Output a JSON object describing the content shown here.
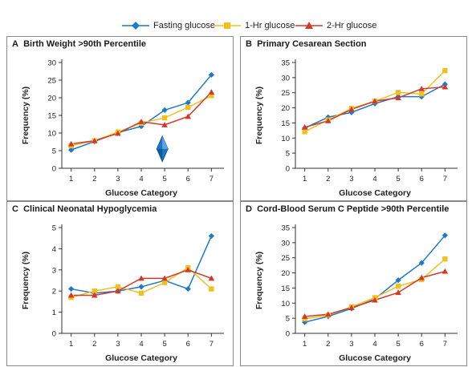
{
  "legend": {
    "fasting": "Fasting glucose",
    "one_hr": "1-Hr glucose",
    "two_hr": "2-Hr glucose"
  },
  "colors": {
    "fasting": "#1f78c8",
    "one_hr": "#f0c020",
    "two_hr": "#d03a2a",
    "border": "#8a8a8a"
  },
  "panels": [
    {
      "letter": "A",
      "title": "Birth Weight >90th Percentile"
    },
    {
      "letter": "B",
      "title": "Primary Cesarean Section"
    },
    {
      "letter": "C",
      "title": "Clinical Neonatal Hypoglycemia"
    },
    {
      "letter": "D",
      "title": "Cord-Blood Serum C Peptide >90th Percentile"
    }
  ],
  "chart_data": [
    {
      "type": "line",
      "title": "A Birth Weight >90th Percentile",
      "xlabel": "Glucose Category",
      "ylabel": "Frequency (%)",
      "x": [
        1,
        2,
        3,
        4,
        5,
        6,
        7
      ],
      "ylim": [
        0,
        30
      ],
      "yticks": [
        0,
        5,
        10,
        15,
        20,
        25,
        30
      ],
      "grid": false,
      "series": [
        {
          "name": "Fasting glucose",
          "marker": "diamond",
          "values": [
            5.2,
            7.6,
            10.1,
            11.9,
            16.5,
            18.6,
            26.5
          ]
        },
        {
          "name": "1-Hr glucose",
          "marker": "square",
          "values": [
            6.4,
            7.8,
            10.3,
            12.8,
            14.3,
            17.3,
            20.6
          ]
        },
        {
          "name": "2-Hr glucose",
          "marker": "triangle",
          "values": [
            6.9,
            7.8,
            9.9,
            13.2,
            12.3,
            14.7,
            21.6
          ]
        }
      ],
      "annotations": [
        {
          "type": "diamond",
          "x": 4.9,
          "y": 5.5,
          "label": ""
        }
      ]
    },
    {
      "type": "line",
      "title": "B Primary Cesarean Section",
      "xlabel": "Glucose Category",
      "ylabel": "Frequency (%)",
      "x": [
        1,
        2,
        3,
        4,
        5,
        6,
        7
      ],
      "ylim": [
        0,
        35
      ],
      "yticks": [
        0,
        5,
        10,
        15,
        20,
        25,
        30,
        35
      ],
      "grid": false,
      "series": [
        {
          "name": "Fasting glucose",
          "marker": "diamond",
          "values": [
            13.3,
            16.9,
            18.5,
            21.4,
            23.7,
            23.7,
            27.8
          ]
        },
        {
          "name": "1-Hr glucose",
          "marker": "square",
          "values": [
            12.1,
            16.0,
            19.8,
            22.2,
            25.1,
            24.6,
            32.3
          ]
        },
        {
          "name": "2-Hr glucose",
          "marker": "triangle",
          "values": [
            13.6,
            15.7,
            19.5,
            22.2,
            23.3,
            26.3,
            26.9
          ]
        }
      ]
    },
    {
      "type": "line",
      "title": "C Clinical Neonatal Hypoglycemia",
      "xlabel": "Glucose Category",
      "ylabel": "Frequency (%)",
      "x": [
        1,
        2,
        3,
        4,
        5,
        6,
        7
      ],
      "ylim": [
        0,
        5
      ],
      "yticks": [
        0,
        1,
        2,
        3,
        4,
        5
      ],
      "grid": false,
      "series": [
        {
          "name": "Fasting glucose",
          "marker": "diamond",
          "values": [
            2.1,
            1.9,
            2.0,
            2.2,
            2.5,
            2.1,
            4.6
          ]
        },
        {
          "name": "1-Hr glucose",
          "marker": "square",
          "values": [
            1.7,
            2.0,
            2.2,
            1.9,
            2.4,
            3.1,
            2.1
          ]
        },
        {
          "name": "2-Hr glucose",
          "marker": "triangle",
          "values": [
            1.8,
            1.8,
            2.0,
            2.6,
            2.6,
            3.0,
            2.6
          ]
        }
      ]
    },
    {
      "type": "line",
      "title": "D Cord-Blood Serum C Peptide >90th Percentile",
      "xlabel": "Glucose Category",
      "ylabel": "Frequency (%)",
      "x": [
        1,
        2,
        3,
        4,
        5,
        6,
        7
      ],
      "ylim": [
        0,
        35
      ],
      "yticks": [
        0,
        5,
        10,
        15,
        20,
        25,
        30,
        35
      ],
      "grid": false,
      "series": [
        {
          "name": "Fasting glucose",
          "marker": "diamond",
          "values": [
            3.7,
            5.6,
            8.2,
            11.4,
            17.6,
            23.3,
            32.4
          ]
        },
        {
          "name": "1-Hr glucose",
          "marker": "square",
          "values": [
            4.8,
            6.0,
            8.8,
            11.8,
            15.6,
            17.8,
            24.6
          ]
        },
        {
          "name": "2-Hr glucose",
          "marker": "triangle",
          "values": [
            5.6,
            6.3,
            8.5,
            11.0,
            13.5,
            18.4,
            20.5
          ]
        }
      ]
    }
  ]
}
